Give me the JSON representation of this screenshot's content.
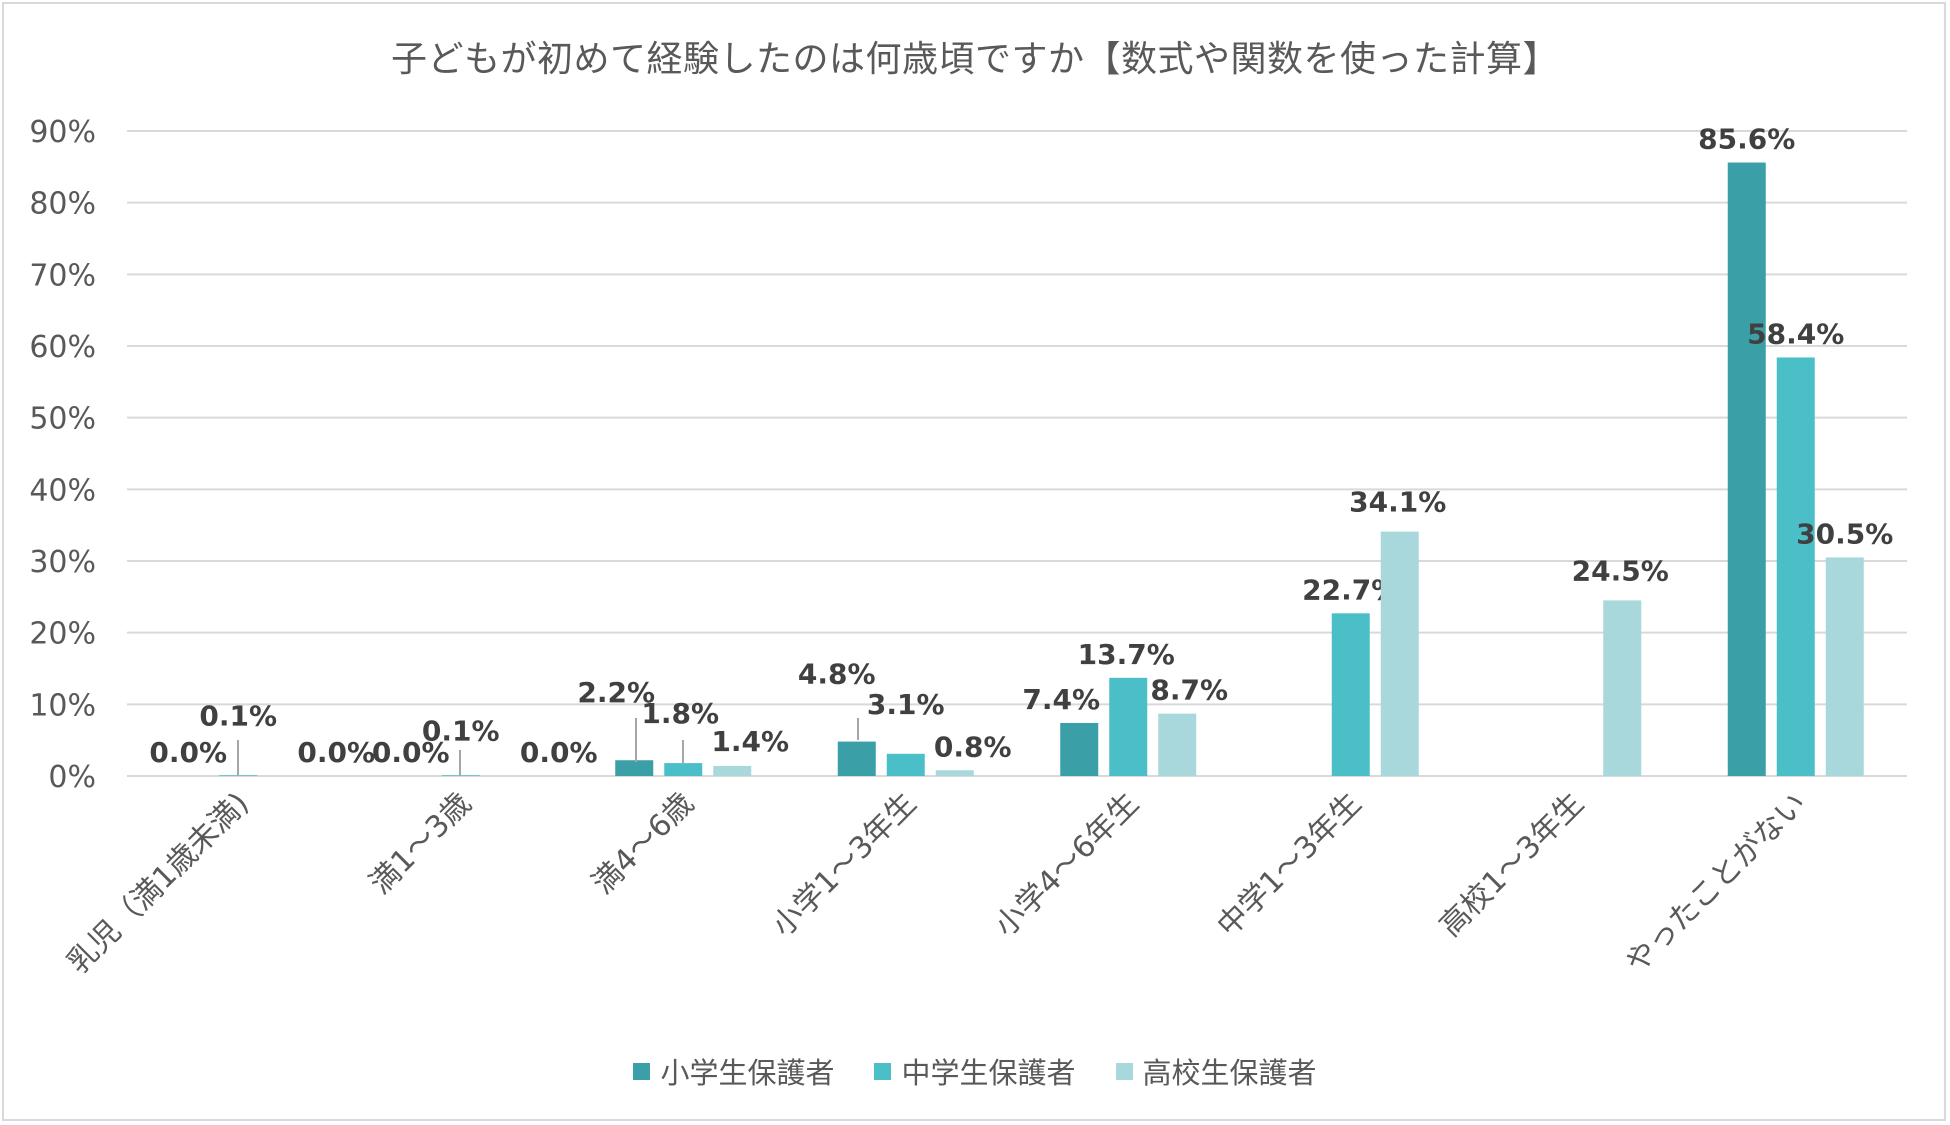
{
  "chart_data": {
    "type": "bar",
    "title": "子どもが初めて経験したのは何歳頃ですか【数式や関数を使った計算】",
    "categories": [
      "乳児（満1歳未満)",
      "満1～3歳",
      "満4～6歳",
      "小学1～3年生",
      "小学4～6年生",
      "中学1～3年生",
      "高校1～3年生",
      "やったことがない"
    ],
    "series": [
      {
        "name": "小学生保護者",
        "color": "#3a9fa6",
        "values": [
          0.0,
          0.0,
          2.2,
          4.8,
          7.4,
          null,
          null,
          85.6
        ],
        "labels": [
          "0.0%",
          "0.0%",
          "2.2%",
          "4.8%",
          "7.4%",
          "",
          "",
          "85.6%"
        ]
      },
      {
        "name": "中学生保護者",
        "color": "#4bbfc7",
        "values": [
          0.1,
          0.1,
          1.8,
          3.1,
          13.7,
          22.7,
          null,
          58.4
        ],
        "labels": [
          "0.1%",
          "0.1%",
          "1.8%",
          "3.1%",
          "13.7%",
          "22.7%",
          "",
          "58.4%"
        ]
      },
      {
        "name": "高校生保護者",
        "color": "#a8d8dc",
        "values": [
          0.0,
          0.0,
          1.4,
          0.8,
          8.7,
          34.1,
          24.5,
          30.5
        ],
        "labels": [
          "0.0%",
          "0.0%",
          "1.4%",
          "0.8%",
          "8.7%",
          "34.1%",
          "24.5%",
          "30.5%"
        ]
      }
    ],
    "yticks": [
      "0%",
      "10%",
      "20%",
      "30%",
      "40%",
      "50%",
      "60%",
      "70%",
      "80%",
      "90%"
    ],
    "ylim": [
      0,
      90
    ],
    "grid": true,
    "legend": "bottom"
  }
}
